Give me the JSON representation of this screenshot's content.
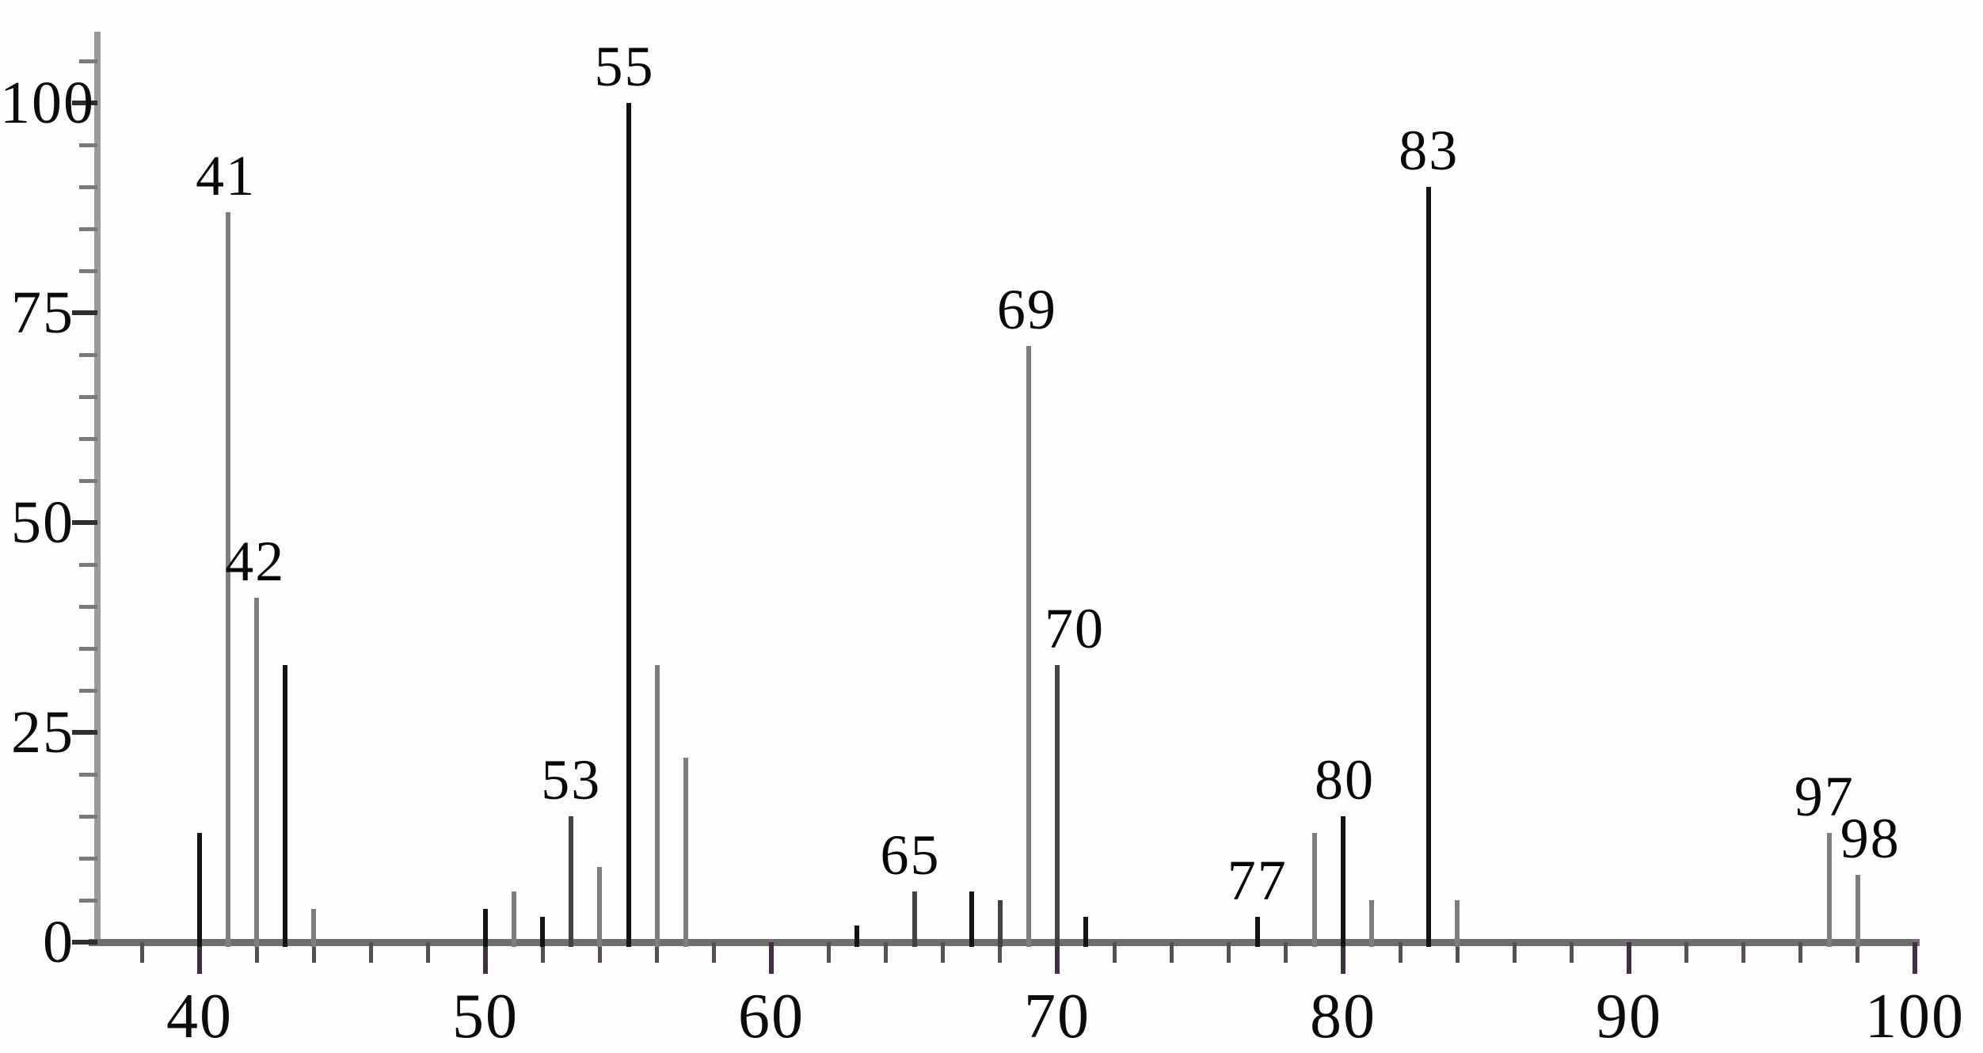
{
  "chart_data": {
    "type": "bar",
    "subtype": "mass-spectrum-stick-plot",
    "title": "",
    "xlabel": "",
    "ylabel": "",
    "grid": false,
    "legend": "none",
    "x_axis": {
      "range": [
        37,
        101
      ],
      "major_ticks": [
        40,
        50,
        60,
        70,
        80,
        90,
        100
      ],
      "major_tick_labels": [
        "40",
        "50",
        "60",
        "70",
        "80",
        "90",
        "100"
      ],
      "minor_tick_step": 2
    },
    "y_axis": {
      "range": [
        0,
        105
      ],
      "major_ticks": [
        0,
        25,
        50,
        75,
        100
      ],
      "major_tick_labels": [
        "0",
        "25",
        "50",
        "75",
        "100"
      ],
      "minor_tick_step": 5
    },
    "peaks": [
      {
        "mz": 40,
        "intensity": 13,
        "color": "dark",
        "label": "",
        "label_dx": 0
      },
      {
        "mz": 41,
        "intensity": 87,
        "color": "gray",
        "label": "41",
        "label_dx": -3
      },
      {
        "mz": 42,
        "intensity": 41,
        "color": "gray",
        "label": "42",
        "label_dx": -2
      },
      {
        "mz": 43,
        "intensity": 33,
        "color": "dark",
        "label": "",
        "label_dx": 0
      },
      {
        "mz": 44,
        "intensity": 4,
        "color": "gray",
        "label": "",
        "label_dx": 0
      },
      {
        "mz": 50,
        "intensity": 4,
        "color": "dark",
        "label": "",
        "label_dx": 0
      },
      {
        "mz": 51,
        "intensity": 6,
        "color": "gray",
        "label": "",
        "label_dx": 0
      },
      {
        "mz": 52,
        "intensity": 3,
        "color": "dark",
        "label": "",
        "label_dx": 0
      },
      {
        "mz": 53,
        "intensity": 15,
        "color": "mid",
        "label": "53",
        "label_dx": 0
      },
      {
        "mz": 54,
        "intensity": 9,
        "color": "gray",
        "label": "",
        "label_dx": 0
      },
      {
        "mz": 55,
        "intensity": 100,
        "color": "dark",
        "label": "55",
        "label_dx": -5
      },
      {
        "mz": 56,
        "intensity": 33,
        "color": "gray",
        "label": "",
        "label_dx": 0
      },
      {
        "mz": 57,
        "intensity": 22,
        "color": "gray",
        "label": "",
        "label_dx": 0
      },
      {
        "mz": 63,
        "intensity": 2,
        "color": "dark",
        "label": "",
        "label_dx": 0
      },
      {
        "mz": 65,
        "intensity": 6,
        "color": "mid",
        "label": "65",
        "label_dx": -5
      },
      {
        "mz": 67,
        "intensity": 6,
        "color": "dark",
        "label": "",
        "label_dx": 0
      },
      {
        "mz": 68,
        "intensity": 5,
        "color": "mid",
        "label": "",
        "label_dx": 0
      },
      {
        "mz": 69,
        "intensity": 71,
        "color": "gray",
        "label": "69",
        "label_dx": -2
      },
      {
        "mz": 70,
        "intensity": 33,
        "color": "mid",
        "label": "70",
        "label_dx": 22
      },
      {
        "mz": 71,
        "intensity": 3,
        "color": "dark",
        "label": "",
        "label_dx": 0
      },
      {
        "mz": 77,
        "intensity": 3,
        "color": "dark",
        "label": "77",
        "label_dx": 0
      },
      {
        "mz": 79,
        "intensity": 13,
        "color": "gray",
        "label": "",
        "label_dx": 0
      },
      {
        "mz": 80,
        "intensity": 15,
        "color": "dark",
        "label": "80",
        "label_dx": 2
      },
      {
        "mz": 81,
        "intensity": 5,
        "color": "gray",
        "label": "",
        "label_dx": 0
      },
      {
        "mz": 83,
        "intensity": 90,
        "color": "dark",
        "label": "83",
        "label_dx": 0
      },
      {
        "mz": 84,
        "intensity": 5,
        "color": "gray",
        "label": "",
        "label_dx": 0
      },
      {
        "mz": 97,
        "intensity": 13,
        "color": "gray",
        "label": "97",
        "label_dx": -6
      },
      {
        "mz": 98,
        "intensity": 8,
        "color": "gray",
        "label": "98",
        "label_dx": 16
      }
    ]
  },
  "colors": {
    "dark": "#131313",
    "gray": "#7d7d7d",
    "mid": "#424242",
    "axis_x": "#6e6e6e",
    "axis_y": "#9a9a9a",
    "text": "#0c0c0c"
  }
}
